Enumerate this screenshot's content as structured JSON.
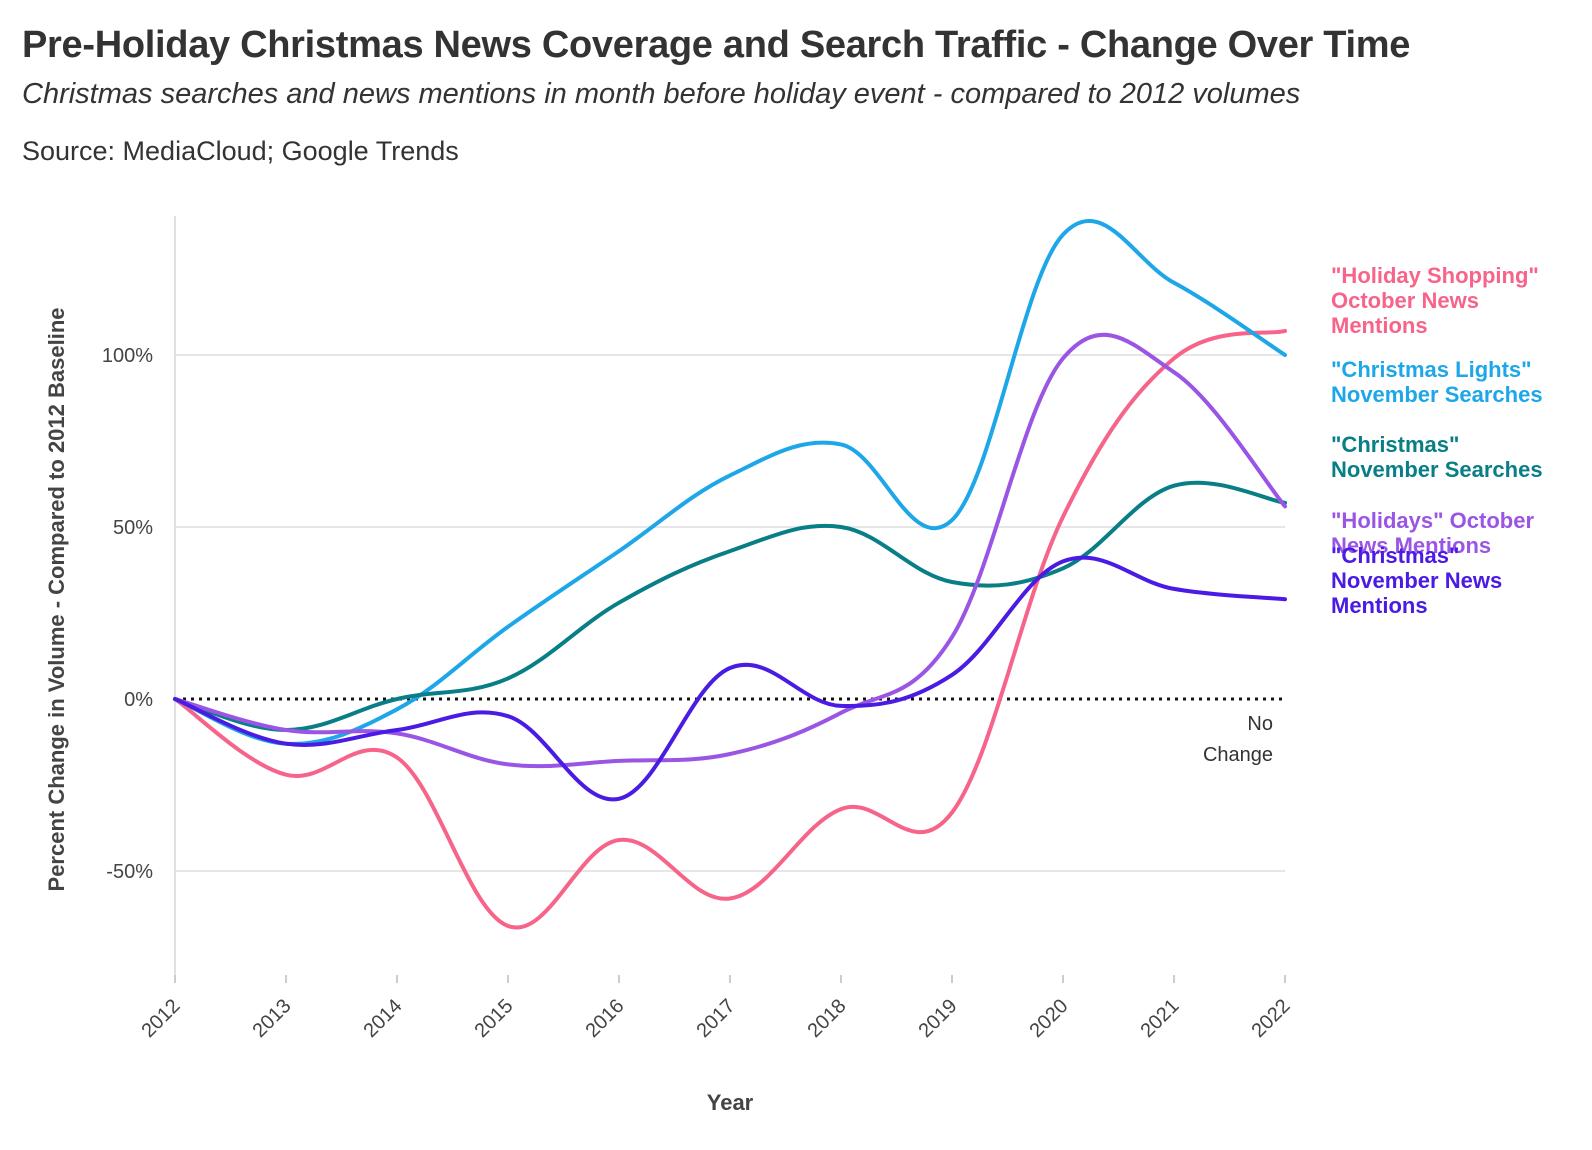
{
  "header": {
    "title": "Pre-Holiday Christmas News Coverage and Search Traffic - Change Over Time",
    "subtitle": "Christmas searches and news mentions in month before holiday event - compared to 2012 volumes",
    "source": "Source: MediaCloud; Google Trends"
  },
  "chart_data": {
    "type": "line",
    "title": "Pre-Holiday Christmas News Coverage and Search Traffic - Change Over Time",
    "subtitle": "Christmas searches and news mentions in month before holiday event - compared to 2012 volumes",
    "xlabel": "Year",
    "ylabel": "Percent Change in Volume - Compared to 2012 Baseline",
    "x": [
      2012,
      2013,
      2014,
      2015,
      2016,
      2017,
      2018,
      2019,
      2020,
      2021,
      2022
    ],
    "x_tick_labels": [
      "2012",
      "2013",
      "2014",
      "2015",
      "2016",
      "2017",
      "2018",
      "2019",
      "2020",
      "2021",
      "2022"
    ],
    "y_ticks": [
      -50,
      0,
      50,
      100
    ],
    "y_tick_labels": [
      "-50%",
      "0%",
      "50%",
      "100%"
    ],
    "ylim": [
      -80,
      140
    ],
    "grid": true,
    "legend": "direct labels at right",
    "reference_line": {
      "value": 0,
      "style": "dotted",
      "label": [
        "No",
        "Change"
      ]
    },
    "series": [
      {
        "name": "\"Holiday Shopping\" October News Mentions",
        "label_lines": [
          "\"Holiday Shopping\"",
          "October News",
          "Mentions"
        ],
        "color": "#f7648a",
        "values": [
          0,
          -22,
          -17,
          -66,
          -41,
          -58,
          -32,
          -33,
          53,
          99,
          107
        ]
      },
      {
        "name": "\"Christmas Lights\" November Searches",
        "label_lines": [
          "\"Christmas Lights\"",
          "November Searches"
        ],
        "color": "#1ea7e8",
        "values": [
          0,
          -13,
          -3,
          21,
          43,
          65,
          74,
          52,
          135,
          121,
          100
        ]
      },
      {
        "name": "\"Christmas\" November Searches",
        "label_lines": [
          "\"Christmas\"",
          "November Searches"
        ],
        "color": "#087e86",
        "values": [
          0,
          -9,
          0,
          6,
          28,
          43,
          50,
          34,
          38,
          62,
          57
        ]
      },
      {
        "name": "\"Holidays\" October News Mentions",
        "label_lines": [
          "\"Holidays\" October",
          "News Mentions"
        ],
        "color": "#9a55e5",
        "values": [
          0,
          -9,
          -10,
          -19,
          -18,
          -16,
          -4,
          18,
          99,
          95,
          56
        ]
      },
      {
        "name": "\"Christmas\" November News Mentions",
        "label_lines": [
          "\"Christmas\"",
          "November News",
          "Mentions"
        ],
        "color": "#4a1be3",
        "values": [
          0,
          -13,
          -9,
          -5,
          -29,
          9,
          -2,
          7,
          40,
          32,
          29
        ]
      }
    ]
  }
}
